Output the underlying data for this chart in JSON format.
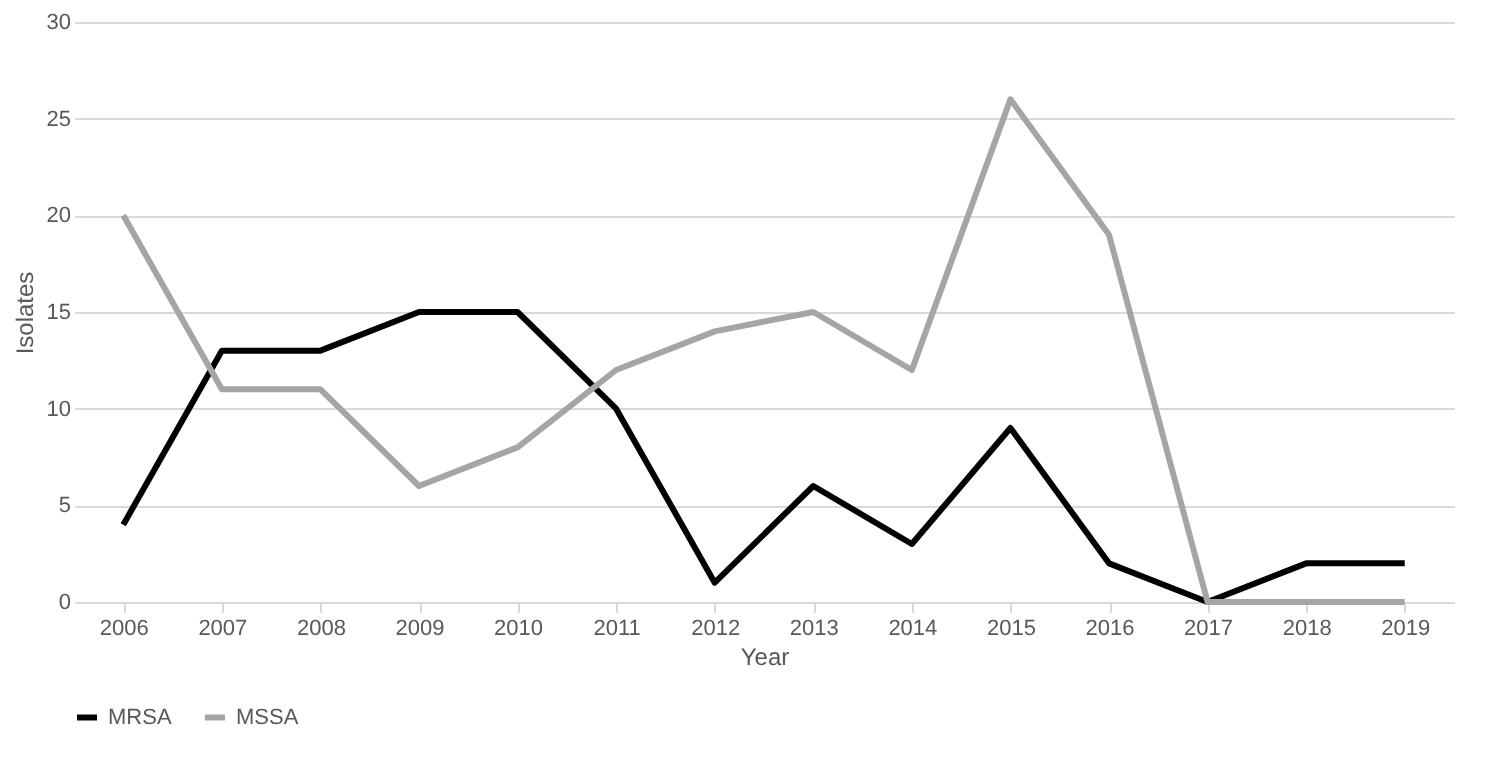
{
  "chart_data": {
    "type": "line",
    "xlabel": "Year",
    "ylabel": "Isolates",
    "categories": [
      "2006",
      "2007",
      "2008",
      "2009",
      "2010",
      "2011",
      "2012",
      "2013",
      "2014",
      "2015",
      "2016",
      "2017",
      "2018",
      "2019"
    ],
    "series": [
      {
        "name": "MRSA",
        "color": "#000000",
        "values": [
          4,
          13,
          13,
          15,
          15,
          10,
          1,
          6,
          3,
          9,
          2,
          0,
          2,
          2
        ]
      },
      {
        "name": "MSSA",
        "color": "#a5a5a5",
        "values": [
          20,
          11,
          11,
          6,
          8,
          12,
          14,
          15,
          12,
          26,
          19,
          0,
          0,
          0
        ]
      }
    ],
    "ylim": [
      0,
      30
    ],
    "yticks": [
      0,
      5,
      10,
      15,
      20,
      25,
      30
    ],
    "grid": "y",
    "legend": "bottom",
    "marker": "none",
    "line_style": "solid"
  }
}
